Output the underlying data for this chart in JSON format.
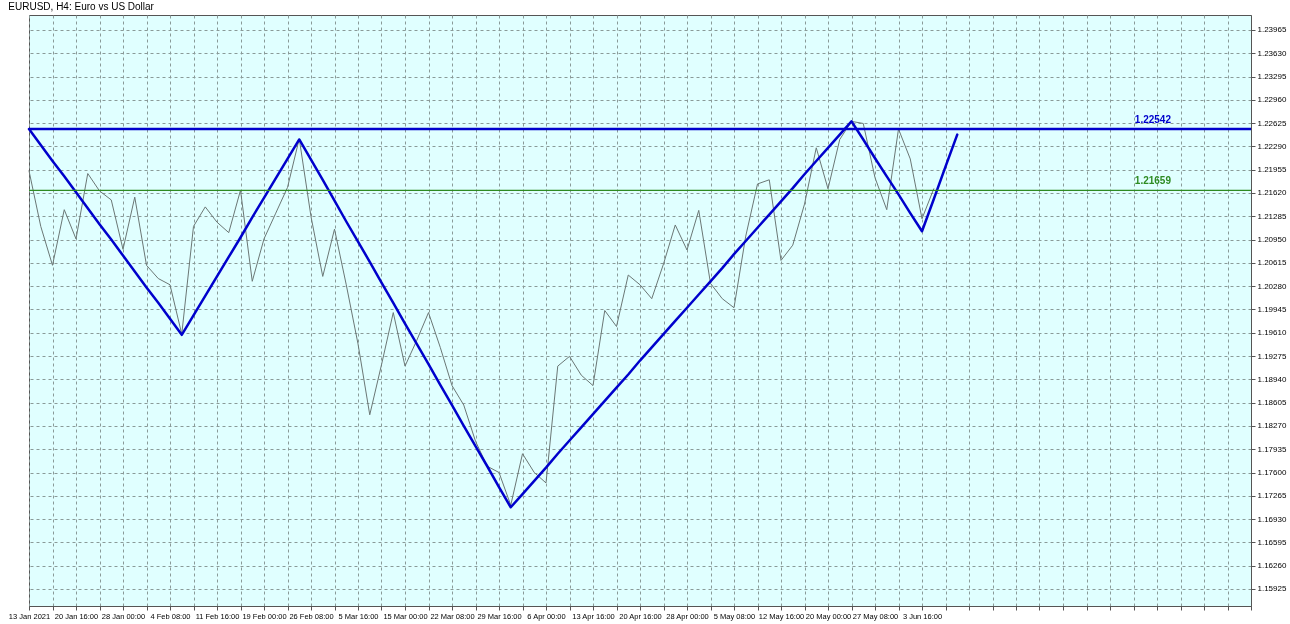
{
  "chart_data": {
    "type": "line",
    "title": "EURUSD, H4: Euro vs US Dollar",
    "categories": [
      "13 Jan 2021",
      null,
      null,
      null,
      "20 Jan 16:00",
      null,
      null,
      null,
      "28 Jan 00:00",
      null,
      null,
      null,
      "4 Feb 08:00",
      null,
      null,
      null,
      "11 Feb 16:00",
      null,
      null,
      null,
      "19 Feb 00:00",
      null,
      null,
      null,
      "26 Feb 08:00",
      null,
      null,
      null,
      "5 Mar 16:00",
      null,
      null,
      null,
      "15 Mar 00:00",
      null,
      null,
      null,
      "22 Mar 08:00",
      null,
      null,
      null,
      "29 Mar 16:00",
      null,
      null,
      null,
      "6 Apr 00:00",
      null,
      null,
      null,
      "13 Apr 16:00",
      null,
      null,
      null,
      "20 Apr 16:00",
      null,
      null,
      null,
      "28 Apr 00:00",
      null,
      null,
      null,
      "5 May 08:00",
      null,
      null,
      null,
      "12 May 16:00",
      null,
      null,
      null,
      "20 May 00:00",
      null,
      null,
      null,
      "27 May 08:00",
      null,
      null,
      null,
      "3 Jun 16:00",
      null,
      null,
      null,
      null,
      null,
      null,
      null,
      null,
      null,
      null,
      null,
      null,
      null,
      null,
      null,
      null,
      null,
      null,
      null,
      null,
      null,
      null,
      null,
      null,
      null,
      null,
      null,
      null
    ],
    "series": [
      {
        "color": "#6b7775",
        "values": [
          1.2194,
          1.2114,
          1.2058,
          1.2138,
          1.2096,
          1.219,
          1.2165,
          1.2152,
          1.2081,
          1.2156,
          1.2058,
          1.2039,
          1.203,
          1.1959,
          1.2114,
          1.2142,
          1.212,
          1.2105,
          1.2166,
          1.2035,
          1.2096,
          1.2133,
          1.217,
          1.224,
          1.2128,
          1.2042,
          1.211,
          1.203,
          1.1945,
          1.1843,
          1.1915,
          1.199,
          1.1913,
          1.195,
          1.199,
          1.194,
          1.1885,
          1.1857,
          1.1805,
          1.1769,
          1.176,
          1.1713,
          1.1787,
          1.176,
          1.1745,
          1.1913,
          1.1927,
          1.19,
          1.1885,
          1.1993,
          1.197,
          1.2044,
          1.203,
          1.201,
          1.206,
          1.2116,
          1.208,
          1.2137,
          1.2032,
          1.201,
          1.1997,
          1.21,
          1.2175,
          1.2181,
          1.2065,
          1.2087,
          1.2146,
          1.2227,
          1.2168,
          1.2239,
          1.2265,
          1.2262,
          1.2184,
          1.2138,
          1.2254,
          1.2211,
          1.2125,
          1.2168,
          null,
          null,
          null,
          null,
          null,
          null,
          null,
          null,
          null,
          null,
          null,
          null,
          null,
          null,
          null,
          null,
          null,
          null,
          null,
          null,
          null,
          null,
          null,
          null,
          null,
          null,
          null
        ]
      },
      {
        "color": "#0000cc",
        "values": [
          1.2254,
          1.2231,
          1.2208,
          1.2186,
          1.2163,
          1.214,
          1.2117,
          1.2095,
          1.2072,
          1.2049,
          1.2026,
          1.2004,
          1.1981,
          1.1958,
          1.1986,
          1.2014,
          1.2042,
          1.207,
          1.2098,
          1.2127,
          1.2155,
          1.2183,
          1.2211,
          1.2239,
          1.221,
          1.2181,
          1.2151,
          1.2121,
          1.2092,
          1.2063,
          1.2033,
          1.2004,
          1.1974,
          1.1945,
          1.1916,
          1.1886,
          1.1857,
          1.1827,
          1.1798,
          1.1769,
          1.1739,
          1.171,
          1.1729,
          1.1748,
          1.1767,
          1.1787,
          1.1806,
          1.1825,
          1.1844,
          1.1863,
          1.1882,
          1.1901,
          1.1921,
          1.194,
          1.1959,
          1.1978,
          1.1997,
          1.2016,
          1.2035,
          1.2054,
          1.2074,
          1.2093,
          1.2112,
          1.2131,
          1.215,
          1.2169,
          1.2189,
          1.2208,
          1.2227,
          1.2246,
          1.2265,
          1.2239,
          1.2212,
          1.2186,
          1.216,
          1.2133,
          1.2107,
          1.2153,
          1.22,
          1.2246,
          null,
          null,
          null,
          null,
          null,
          null,
          null,
          null,
          null,
          null,
          null,
          null,
          null,
          null,
          null,
          null,
          null,
          null,
          null,
          null,
          null,
          null,
          null,
          null,
          null
        ]
      }
    ],
    "ref_lines": [
      {
        "axis": "y",
        "value": 1.22542,
        "label": "1.22542",
        "color": "#0000cc",
        "line_style": "solid"
      },
      {
        "axis": "y",
        "value": 1.21659,
        "label": "1.21659",
        "color": "#2e8b22",
        "line_style": "solid"
      }
    ],
    "ylim": [
      1.1568,
      1.2418
    ],
    "yticks": [
      1.23965,
      {
        "value": 1.2363,
        "label": "1.23630"
      },
      1.23295,
      {
        "value": 1.2296,
        "label": "1.22960"
      },
      1.22625,
      {
        "value": 1.2229,
        "label": "1.22290"
      },
      1.21955,
      {
        "value": 1.2162,
        "label": "1.21620"
      },
      1.21285,
      {
        "value": 1.2095,
        "label": "1.20950"
      },
      1.20615,
      {
        "value": 1.2028,
        "label": "1.20280"
      },
      1.19945,
      {
        "value": 1.1961,
        "label": "1.19610"
      },
      1.19275,
      {
        "value": 1.1894,
        "label": "1.18940"
      },
      1.18605,
      {
        "value": 1.1827,
        "label": "1.18270"
      },
      1.17935,
      {
        "value": 1.176,
        "label": "1.17600"
      },
      1.17265,
      {
        "value": 1.1693,
        "label": "1.16930"
      },
      1.16595,
      {
        "value": 1.1626,
        "label": "1.16260"
      },
      1.15925
    ],
    "grid": true,
    "marker": "none",
    "line_style": "solid"
  }
}
